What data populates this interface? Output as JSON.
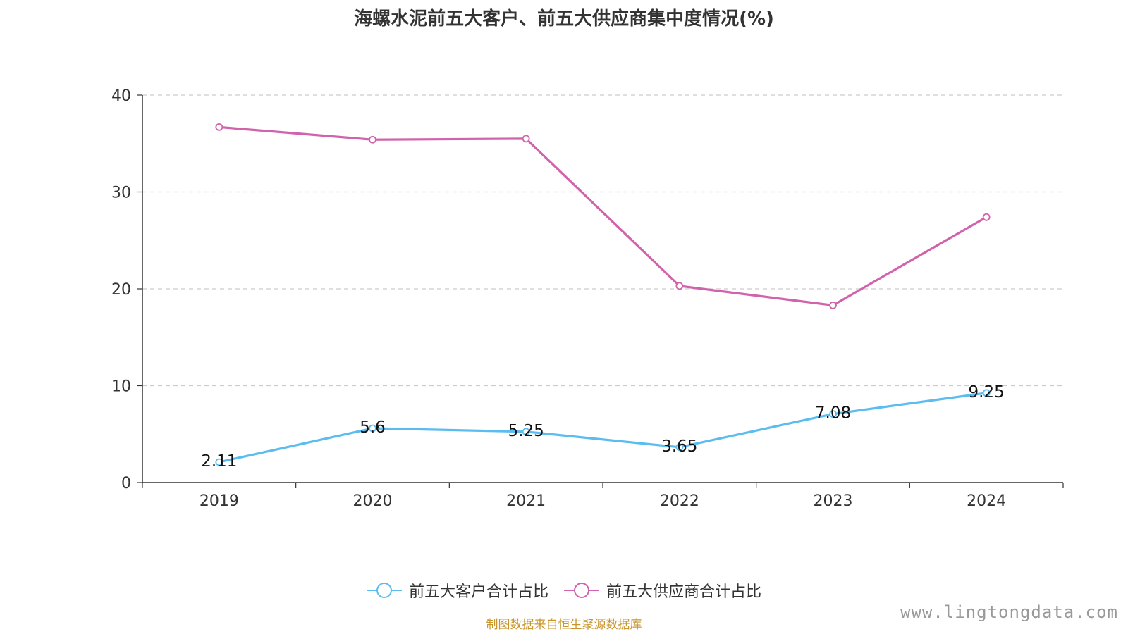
{
  "chart_data": {
    "type": "line",
    "title": "海螺水泥前五大客户、前五大供应商集中度情况(%)",
    "categories": [
      "2019",
      "2020",
      "2021",
      "2022",
      "2023",
      "2024"
    ],
    "series": [
      {
        "name": "前五大客户合计占比",
        "values": [
          2.11,
          5.6,
          5.25,
          3.65,
          7.08,
          9.25
        ],
        "color": "#5bbcf0",
        "show_labels": true
      },
      {
        "name": "前五大供应商合计占比",
        "values": [
          36.7,
          35.4,
          35.5,
          20.3,
          18.3,
          27.4
        ],
        "color": "#d163ac",
        "show_labels": false
      }
    ],
    "ylim": [
      0,
      40
    ],
    "yticks": [
      0,
      10,
      20,
      30,
      40
    ],
    "grid": true,
    "legend_position": "bottom"
  },
  "source_text": "制图数据来自恒生聚源数据库",
  "watermark": "www.lingtongdata.com"
}
